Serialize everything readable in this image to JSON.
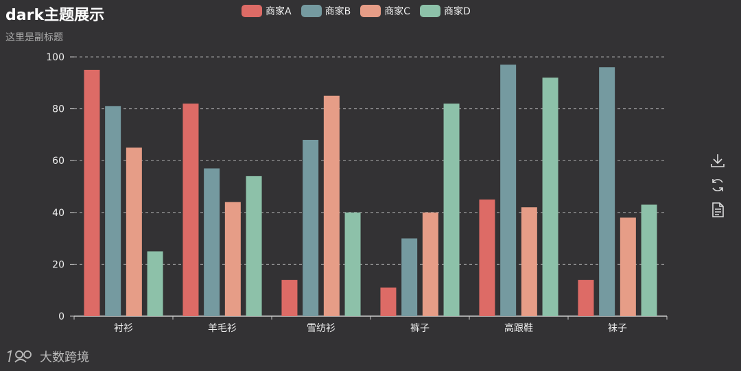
{
  "title": "dark主题展示",
  "subtitle": "这里是副标题",
  "watermark": {
    "text": "大数跨境"
  },
  "toolbox": [
    "download-icon",
    "refresh-icon",
    "data-view-icon"
  ],
  "chart_data": {
    "type": "bar",
    "categories": [
      "衬衫",
      "羊毛衫",
      "雪纺衫",
      "裤子",
      "高跟鞋",
      "袜子"
    ],
    "series": [
      {
        "name": "商家A",
        "color": "#dd6b66",
        "values": [
          95,
          82,
          14,
          11,
          45,
          14
        ]
      },
      {
        "name": "商家B",
        "color": "#759aa0",
        "values": [
          81,
          57,
          68,
          30,
          97,
          96
        ]
      },
      {
        "name": "商家C",
        "color": "#e69d87",
        "values": [
          65,
          44,
          85,
          40,
          42,
          38
        ]
      },
      {
        "name": "商家D",
        "color": "#8dc1a9",
        "values": [
          25,
          54,
          40,
          82,
          92,
          43
        ]
      }
    ],
    "ylim": [
      0,
      100
    ],
    "yticks": [
      0,
      20,
      40,
      60,
      80,
      100
    ],
    "grid": true,
    "legend": "top-center"
  }
}
